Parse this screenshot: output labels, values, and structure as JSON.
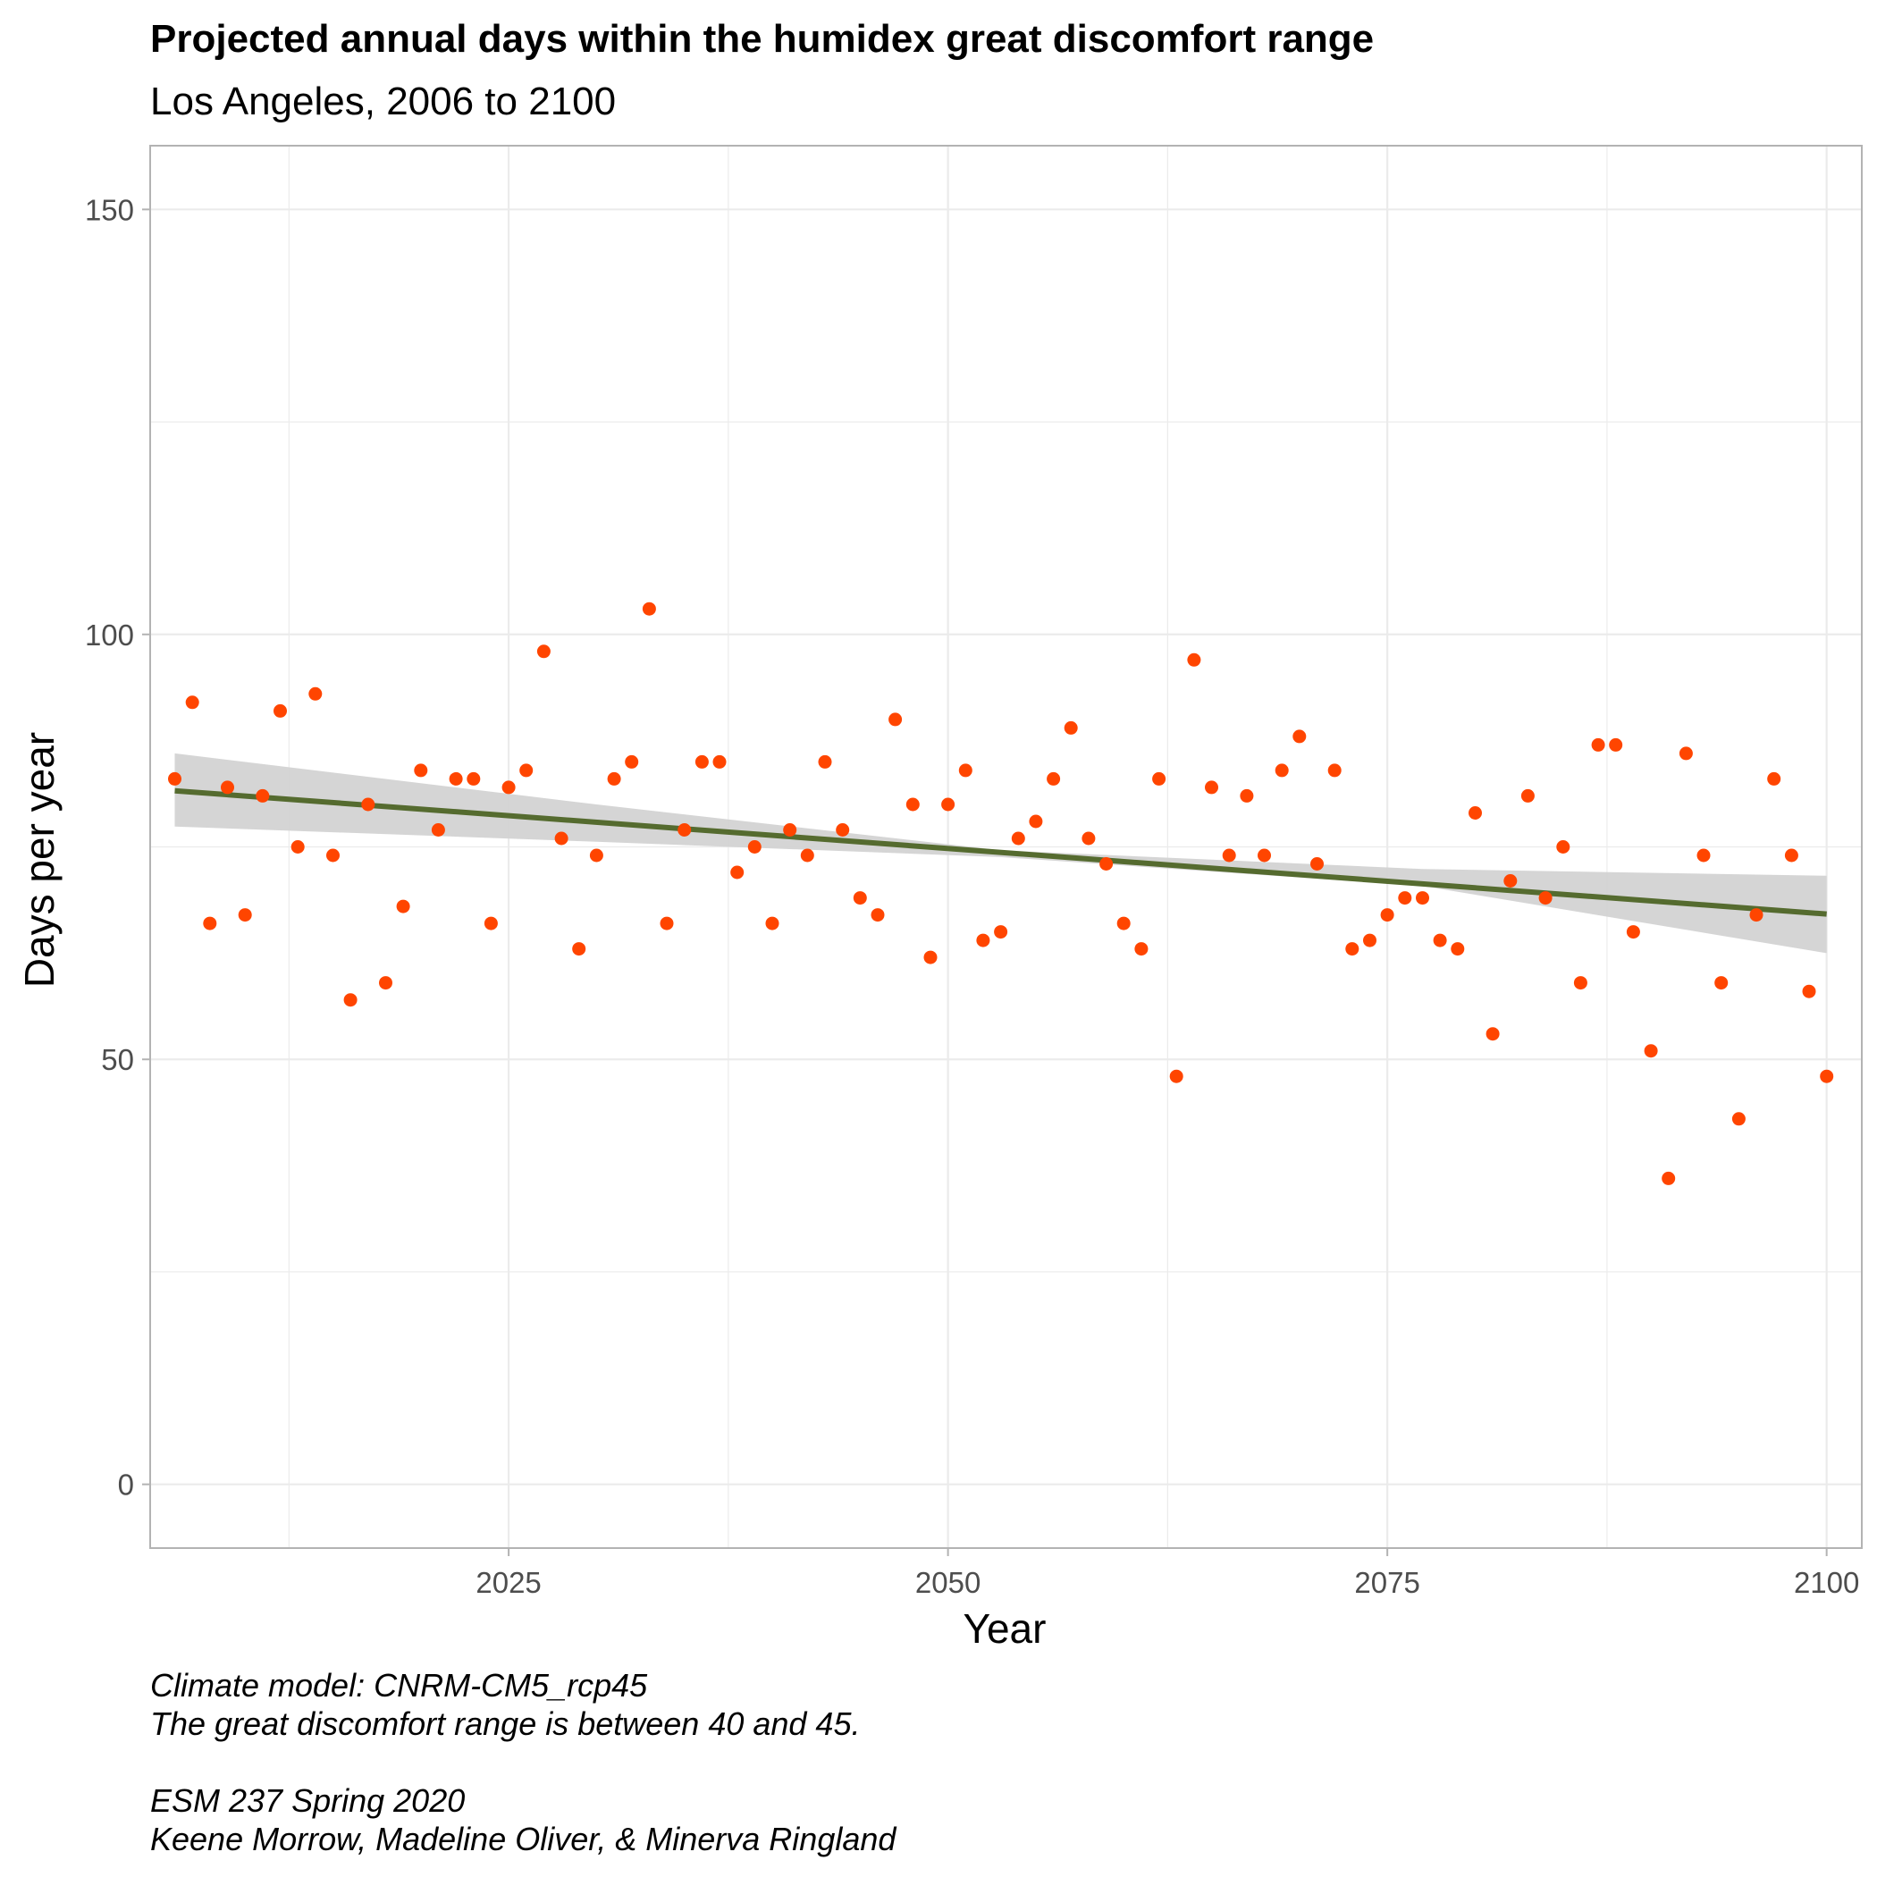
{
  "chart_data": {
    "type": "scatter",
    "title": "Projected annual days within the humidex great discomfort range",
    "subtitle": "Los Angeles, 2006 to 2100",
    "xlabel": "Year",
    "ylabel": "Days per year",
    "xlim": [
      2004.6,
      2102
    ],
    "ylim": [
      -7.5,
      157.5
    ],
    "x_ticks": [
      2025,
      2050,
      2075,
      2100
    ],
    "y_ticks": [
      0,
      50,
      100,
      150
    ],
    "grid": true,
    "caption": [
      "Climate model:  CNRM-CM5_rcp45",
      "The great discomfort range is between 40 and 45.",
      "",
      "ESM 237 Spring 2020",
      "Keene Morrow, Madeline Oliver, & Minerva Ringland"
    ],
    "series": [
      {
        "type": "scatter",
        "x": [
          2006,
          2007,
          2008,
          2009,
          2010,
          2011,
          2012,
          2013,
          2014,
          2015,
          2016,
          2017,
          2018,
          2019,
          2020,
          2021,
          2022,
          2023,
          2024,
          2025,
          2026,
          2027,
          2028,
          2029,
          2030,
          2031,
          2032,
          2033,
          2034,
          2035,
          2036,
          2037,
          2038,
          2039,
          2040,
          2041,
          2042,
          2043,
          2044,
          2045,
          2046,
          2047,
          2048,
          2049,
          2050,
          2051,
          2052,
          2053,
          2054,
          2055,
          2056,
          2057,
          2058,
          2059,
          2060,
          2061,
          2062,
          2063,
          2064,
          2065,
          2066,
          2067,
          2068,
          2069,
          2070,
          2071,
          2072,
          2073,
          2074,
          2075,
          2076,
          2077,
          2078,
          2079,
          2080,
          2081,
          2082,
          2083,
          2084,
          2085,
          2086,
          2087,
          2088,
          2089,
          2090,
          2091,
          2092,
          2093,
          2094,
          2095,
          2096,
          2097,
          2098,
          2099,
          2100
        ],
        "y": [
          83,
          92,
          66,
          82,
          67,
          81,
          91,
          75,
          93,
          74,
          57,
          80,
          59,
          68,
          84,
          77,
          83,
          83,
          66,
          82,
          84,
          98,
          76,
          63,
          74,
          83,
          85,
          103,
          66,
          77,
          85,
          85,
          72,
          75,
          66,
          77,
          74,
          85,
          77,
          69,
          67,
          90,
          80,
          62,
          80,
          84,
          64,
          65,
          76,
          78,
          83,
          89,
          76,
          73,
          66,
          63,
          83,
          48,
          97,
          82,
          74,
          81,
          74,
          84,
          88,
          73,
          84,
          63,
          64,
          67,
          69,
          69,
          64,
          63,
          79,
          53,
          71,
          81,
          69,
          75,
          59,
          87,
          87,
          65,
          51,
          36,
          86,
          74,
          59,
          43,
          67,
          83,
          74,
          58,
          48
        ]
      },
      {
        "type": "line",
        "x": [
          2006,
          2100
        ],
        "y": [
          81.6,
          67.1
        ]
      },
      {
        "type": "area",
        "x": [
          2006,
          2030,
          2053,
          2077,
          2100
        ],
        "ci_lower": [
          77.4,
          75.6,
          73.8,
          70.4,
          62.5
        ],
        "ci_upper": [
          86.0,
          80.0,
          74.6,
          72.4,
          71.6
        ]
      }
    ]
  },
  "colors": {
    "points": "#ff4500",
    "line": "#556b2f",
    "ribbon": "#d3d3d3",
    "grid": "#ebebeb",
    "panel_border": "#b3b3b3",
    "tick_label": "#4d4d4d"
  }
}
